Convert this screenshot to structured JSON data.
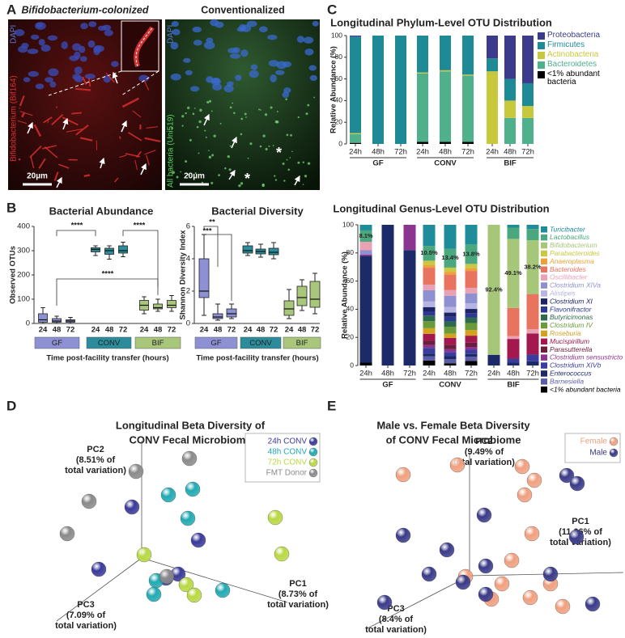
{
  "panel_labels": [
    "A",
    "B",
    "C",
    "D",
    "E"
  ],
  "micrographs": {
    "left_title": "Bifidobacterium-colonized",
    "right_title": "Conventionalized",
    "left_stain_nuclei": "DAPI",
    "left_stain_bacteria": "Bifidobacterium (Bif164)",
    "right_stain_nuclei": "DAPI",
    "right_stain_bacteria": "All bacteria (Uni519)",
    "scale_bar": "20µm",
    "marker": "*"
  },
  "chart_data": [
    {
      "type": "box",
      "title": "Bacterial Abundance",
      "y_label": "Observed OTUs",
      "x_label": "Time post-facility transfer (hours)",
      "ylim": [
        0,
        400
      ],
      "yticks": [
        0,
        100,
        200,
        300,
        400
      ],
      "annotations": [
        "****",
        "****",
        "****"
      ],
      "groups": [
        {
          "name": "GF",
          "color": "#8d91d4",
          "categories": [
            "24",
            "48",
            "72"
          ],
          "boxes": [
            {
              "min": 0,
              "q1": 5,
              "median": 15,
              "q3": 40,
              "max": 65
            },
            {
              "min": 0,
              "q1": 5,
              "median": 10,
              "q3": 20,
              "max": 30
            },
            {
              "min": 0,
              "q1": 5,
              "median": 10,
              "q3": 15,
              "max": 25
            }
          ]
        },
        {
          "name": "CONV",
          "color": "#2b8c9c",
          "categories": [
            "24",
            "48",
            "72"
          ],
          "boxes": [
            {
              "min": 280,
              "q1": 295,
              "median": 305,
              "q3": 312,
              "max": 320
            },
            {
              "min": 265,
              "q1": 285,
              "median": 300,
              "q3": 310,
              "max": 320
            },
            {
              "min": 275,
              "q1": 290,
              "median": 300,
              "q3": 320,
              "max": 335
            }
          ]
        },
        {
          "name": "BIF",
          "color": "#a8c77a",
          "categories": [
            "24",
            "48",
            "72"
          ],
          "boxes": [
            {
              "min": 40,
              "q1": 55,
              "median": 75,
              "q3": 95,
              "max": 110
            },
            {
              "min": 50,
              "q1": 60,
              "median": 65,
              "q3": 80,
              "max": 100
            },
            {
              "min": 50,
              "q1": 65,
              "median": 75,
              "q3": 95,
              "max": 115
            }
          ]
        }
      ]
    },
    {
      "type": "box",
      "title": "Bacterial Diversity",
      "y_label": "Shannon Diversity Index",
      "x_label": "Time post-facility transfer (hours)",
      "ylim": [
        0,
        6
      ],
      "yticks": [
        0,
        2,
        4,
        6
      ],
      "annotations": [
        "**",
        "***"
      ],
      "groups": [
        {
          "name": "GF",
          "color": "#8d91d4",
          "categories": [
            "24",
            "48",
            "72"
          ],
          "boxes": [
            {
              "min": 0.5,
              "q1": 1.6,
              "median": 2.0,
              "q3": 4.0,
              "max": 5.5
            },
            {
              "min": 0.2,
              "q1": 0.3,
              "median": 0.4,
              "q3": 0.6,
              "max": 1.2
            },
            {
              "min": 0.3,
              "q1": 0.4,
              "median": 0.6,
              "q3": 0.9,
              "max": 1.2
            }
          ]
        },
        {
          "name": "CONV",
          "color": "#2b8c9c",
          "categories": [
            "24",
            "48",
            "72"
          ],
          "boxes": [
            {
              "min": 4.2,
              "q1": 4.35,
              "median": 4.5,
              "q3": 4.8,
              "max": 5.0
            },
            {
              "min": 4.1,
              "q1": 4.3,
              "median": 4.45,
              "q3": 4.6,
              "max": 4.9
            },
            {
              "min": 4.0,
              "q1": 4.25,
              "median": 4.4,
              "q3": 4.65,
              "max": 5.0
            }
          ]
        },
        {
          "name": "BIF",
          "color": "#a8c77a",
          "categories": [
            "24",
            "48",
            "72"
          ],
          "boxes": [
            {
              "min": 0.3,
              "q1": 0.5,
              "median": 0.9,
              "q3": 1.4,
              "max": 2.1
            },
            {
              "min": 0.8,
              "q1": 1.1,
              "median": 1.6,
              "q3": 2.3,
              "max": 2.7
            },
            {
              "min": 0.6,
              "q1": 1.0,
              "median": 1.5,
              "q3": 2.6,
              "max": 3.1
            }
          ]
        }
      ]
    },
    {
      "type": "stacked_bar",
      "title": "Longitudinal Phylum-Level OTU Distribution",
      "y_label": "Relative Abundance (%)",
      "ylim": [
        0,
        100
      ],
      "yticks": [
        0,
        20,
        40,
        60,
        80,
        100
      ],
      "groups": [
        "GF",
        "CONV",
        "BIF"
      ],
      "categories": [
        "24h",
        "48h",
        "72h",
        "24h",
        "48h",
        "72h",
        "24h",
        "48h",
        "72h"
      ],
      "series": [
        {
          "name": "Proteobacteria",
          "color": "#3b3a8c",
          "values": [
            1,
            0,
            0,
            0,
            0,
            0,
            21,
            40,
            44
          ]
        },
        {
          "name": "Firmicutes",
          "color": "#1e8a96",
          "values": [
            89,
            100,
            100,
            34,
            32,
            36,
            12,
            20,
            21
          ]
        },
        {
          "name": "Actinobacteria",
          "color": "#c8c83c",
          "values": [
            1,
            0,
            0,
            1,
            1,
            1,
            67,
            16,
            11
          ]
        },
        {
          "name": "Bacteroidetes",
          "color": "#4fb08c",
          "values": [
            8,
            0,
            0,
            63,
            65,
            61,
            0,
            24,
            24
          ]
        },
        {
          "name": "<1% abundant bacteria",
          "color": "#000000",
          "values": [
            1,
            0,
            0,
            2,
            2,
            2,
            0,
            0,
            0
          ]
        }
      ]
    },
    {
      "type": "stacked_bar",
      "title": "Longitudinal Genus-Level OTU Distribution",
      "y_label": "Relative Abundance (%)",
      "ylim": [
        0,
        100
      ],
      "yticks": [
        0,
        20,
        40,
        60,
        80,
        100
      ],
      "groups": [
        "GF",
        "CONV",
        "BIF"
      ],
      "categories": [
        "24h",
        "48h",
        "72h",
        "24h",
        "48h",
        "72h",
        "24h",
        "48h",
        "72h"
      ],
      "series": [
        {
          "name": "Turicibacter",
          "color": "#1f8c99",
          "values": [
            4,
            0,
            0,
            15,
            17,
            14,
            0,
            2,
            3
          ]
        },
        {
          "name": "Lactobacillus",
          "color": "#4aa77e",
          "values": [
            8.1,
            0,
            0,
            10.5,
            13.4,
            13.8,
            0,
            8,
            8
          ],
          "value_labels": [
            "8.1%",
            null,
            null,
            "10.5%",
            "13.4%",
            "13.8%",
            null,
            null,
            null
          ]
        },
        {
          "name": "Bifidobacterium",
          "color": "#a6c77a",
          "values": [
            0,
            0,
            0,
            0,
            0,
            0,
            92.4,
            49.1,
            38.2
          ],
          "value_labels": [
            null,
            null,
            null,
            null,
            null,
            null,
            "92.4%",
            "49.1%",
            "38.2%"
          ]
        },
        {
          "name": "Parabacteroides",
          "color": "#c9c744",
          "values": [
            0,
            0,
            0,
            3,
            3,
            3,
            0,
            0,
            0
          ]
        },
        {
          "name": "Anaeroplasma",
          "color": "#e9a33a",
          "values": [
            0,
            0,
            0,
            2,
            2,
            2,
            0,
            0,
            0
          ]
        },
        {
          "name": "Bacteroides",
          "color": "#e8735f",
          "values": [
            0,
            0,
            0,
            12,
            11,
            12,
            0,
            20,
            25
          ]
        },
        {
          "name": "Oscillibacter",
          "color": "#e9a1b4",
          "values": [
            6,
            0,
            0,
            4,
            4,
            4,
            0,
            2,
            3
          ]
        },
        {
          "name": "Clostridium XIVa",
          "color": "#8e90cf",
          "values": [
            3,
            0,
            0,
            8,
            8,
            7,
            0,
            0,
            0
          ]
        },
        {
          "name": "Alistipes",
          "color": "#b5b4e2",
          "values": [
            0,
            0,
            0,
            4,
            4,
            4,
            0,
            0,
            0
          ]
        },
        {
          "name": "Clostridium XI",
          "color": "#1d2466",
          "values": [
            0,
            0,
            0,
            3,
            3,
            3,
            0,
            0,
            0
          ]
        },
        {
          "name": "Flavonifractor",
          "color": "#2c3894",
          "values": [
            0,
            0,
            0,
            3,
            3,
            3,
            0,
            0,
            0
          ]
        },
        {
          "name": "Butyricimonas",
          "color": "#2e6b4e",
          "values": [
            0,
            0,
            0,
            4,
            4,
            4,
            0,
            0,
            0
          ]
        },
        {
          "name": "Clostridium IV",
          "color": "#6b9a3b",
          "values": [
            0,
            0,
            0,
            5,
            5,
            5,
            0,
            0,
            0
          ]
        },
        {
          "name": "Roseburia",
          "color": "#d3a21f",
          "values": [
            0,
            0,
            0,
            4,
            3,
            4,
            0,
            0,
            0
          ]
        },
        {
          "name": "Mucispirillum",
          "color": "#a2184f",
          "values": [
            0,
            0,
            0,
            5,
            5,
            5,
            0,
            14,
            15
          ]
        },
        {
          "name": "Parasutterella",
          "color": "#6b1f3c",
          "values": [
            0,
            0,
            0,
            3,
            3,
            3,
            0,
            0,
            0
          ]
        },
        {
          "name": "Clostridium sensustricto",
          "color": "#8c3590",
          "values": [
            0.9,
            0,
            18,
            2,
            2,
            2,
            0,
            0,
            0
          ]
        },
        {
          "name": "Clostridium XIVb",
          "color": "#3b3d9c",
          "values": [
            0,
            0,
            0,
            4,
            3,
            3,
            0,
            2.9,
            4.8
          ]
        },
        {
          "name": "Enterococcus",
          "color": "#1c2a68",
          "values": [
            76,
            100,
            82,
            2,
            2,
            2,
            7.6,
            2,
            3
          ]
        },
        {
          "name": "Barnesiella",
          "color": "#5b5ea6",
          "values": [
            0,
            0,
            0,
            3,
            3,
            3,
            0,
            0,
            0
          ]
        },
        {
          "name": "<1% abundant bacteria",
          "color": "#000000",
          "values": [
            2,
            0,
            0,
            3.5,
            1.6,
            3.2,
            0,
            0,
            0
          ]
        }
      ]
    },
    {
      "type": "scatter3d",
      "title": [
        "Longitudinal Beta Diversity of",
        "CONV Fecal Microbiome"
      ],
      "pc1_label": [
        "PC1",
        "(8.73% of",
        "total variation)"
      ],
      "pc2_label": [
        "PC2",
        "(8.51% of",
        "total variation)"
      ],
      "pc3_label": [
        "PC3",
        "(7.09% of",
        "total variation)"
      ],
      "series": [
        {
          "name": "24h CONV",
          "color": "#3a3a9a"
        },
        {
          "name": "48h CONV",
          "color": "#22a9b2"
        },
        {
          "name": "72h CONV",
          "color": "#b9d843"
        },
        {
          "name": "FMT Donor",
          "color": "#8a8a8a"
        }
      ]
    },
    {
      "type": "scatter3d",
      "title": [
        "Male vs. Female Beta Diversity",
        "of CONV Fecal Microbiome"
      ],
      "pc1_label": [
        "PC1",
        "(11.06% of",
        "total variation)"
      ],
      "pc2_label": [
        "PC2",
        "(9.49% of",
        "total variation)"
      ],
      "pc3_label": [
        "PC3",
        "(8.4% of",
        "total variation)"
      ],
      "series": [
        {
          "name": "Female",
          "color": "#f0a080"
        },
        {
          "name": "Male",
          "color": "#3a3a8a"
        }
      ]
    }
  ]
}
